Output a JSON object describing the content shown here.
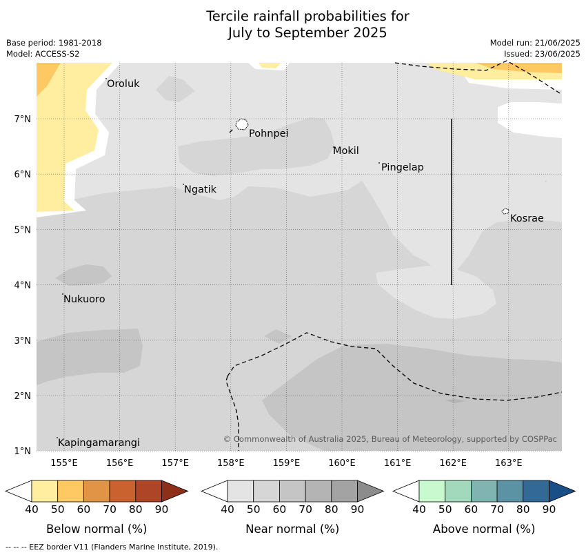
{
  "title_line1": "Tercile rainfall probabilities for",
  "title_line2": "July to September 2025",
  "base_period": "Base period: 1981-2018",
  "model": "Model: ACCESS-S2",
  "model_run": "Model run: 21/06/2025",
  "issued": "Issued: 23/06/2025",
  "copyright": "© Commonwealth of Australia 2025, Bureau of Meteorology, supported by COSPPac",
  "eez_note": "--  --  -- EEZ border V11 (Flanders Marine Institute, 2019).",
  "map": {
    "lon_labels": [
      "155°E",
      "156°E",
      "157°E",
      "158°E",
      "159°E",
      "160°E",
      "161°E",
      "162°E",
      "163°E"
    ],
    "lat_labels": [
      "7°N",
      "6°N",
      "5°N",
      "4°N",
      "3°N",
      "2°N",
      "1°N"
    ],
    "places": [
      "Oroluk",
      "Pohnpei",
      "Mokil",
      "Pingelap",
      "Ngatik",
      "Kosrae",
      "Nukuoro",
      "Kapingamarangi"
    ]
  },
  "colorbars": [
    {
      "label": "Below normal (%)",
      "ticks": [
        "40",
        "50",
        "60",
        "70",
        "80",
        "90"
      ],
      "colors": [
        "#ffeda0",
        "#fec863",
        "#e19346",
        "#c9622f",
        "#ad4526",
        "#8e2f1a"
      ]
    },
    {
      "label": "Near normal (%)",
      "ticks": [
        "40",
        "50",
        "60",
        "70",
        "80",
        "90"
      ],
      "colors": [
        "#e4e4e4",
        "#d6d6d6",
        "#c5c5c5",
        "#b4b4b4",
        "#a3a3a3",
        "#8c8c8c"
      ]
    },
    {
      "label": "Above normal (%)",
      "ticks": [
        "40",
        "50",
        "60",
        "70",
        "80",
        "90"
      ],
      "colors": [
        "#c9f9cf",
        "#a2d9bd",
        "#7fb4b0",
        "#5b93a4",
        "#336995",
        "#1a4e87"
      ]
    }
  ]
}
